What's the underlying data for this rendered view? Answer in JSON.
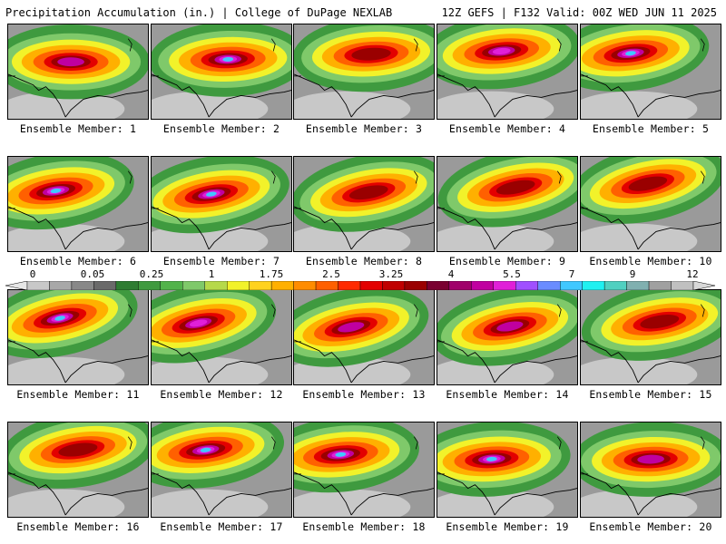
{
  "header": {
    "title_left": "Precipitation Accumulation (in.) | College of DuPage NEXLAB",
    "title_right": "12Z GEFS | F132 Valid: 00Z WED JUN 11 2025"
  },
  "members": [
    {
      "label": "Ensemble Member: 1",
      "max_level": 10
    },
    {
      "label": "Ensemble Member: 2",
      "max_level": 12
    },
    {
      "label": "Ensemble Member: 3",
      "max_level": 9
    },
    {
      "label": "Ensemble Member: 4",
      "max_level": 11
    },
    {
      "label": "Ensemble Member: 5",
      "max_level": 12
    },
    {
      "label": "Ensemble Member: 6",
      "max_level": 13
    },
    {
      "label": "Ensemble Member: 7",
      "max_level": 13
    },
    {
      "label": "Ensemble Member: 8",
      "max_level": 9
    },
    {
      "label": "Ensemble Member: 9",
      "max_level": 9
    },
    {
      "label": "Ensemble Member: 10",
      "max_level": 9
    },
    {
      "label": "Ensemble Member: 11",
      "max_level": 13
    },
    {
      "label": "Ensemble Member: 12",
      "max_level": 11
    },
    {
      "label": "Ensemble Member: 13",
      "max_level": 10
    },
    {
      "label": "Ensemble Member: 14",
      "max_level": 10
    },
    {
      "label": "Ensemble Member: 15",
      "max_level": 9
    },
    {
      "label": "Ensemble Member: 16",
      "max_level": 9
    },
    {
      "label": "Ensemble Member: 17",
      "max_level": 13
    },
    {
      "label": "Ensemble Member: 18",
      "max_level": 12
    },
    {
      "label": "Ensemble Member: 19",
      "max_level": 13
    },
    {
      "label": "Ensemble Member: 20",
      "max_level": 10
    }
  ],
  "colorbar": {
    "ticks": [
      "0",
      "0.05",
      "0.25",
      "1",
      "1.75",
      "2.5",
      "3.25",
      "4",
      "5.5",
      "7",
      "9",
      "12"
    ],
    "colors": [
      "#e6e6e6",
      "#c8c8c8",
      "#a8a8a8",
      "#888888",
      "#6a6a6a",
      "#2e7d32",
      "#3f9a3f",
      "#52b34a",
      "#7fc96a",
      "#b6d94a",
      "#f2f22a",
      "#ffd21e",
      "#ffb000",
      "#ff8c00",
      "#ff6000",
      "#ff2a00",
      "#e30000",
      "#c00000",
      "#9a0000",
      "#7a0030",
      "#a0006a",
      "#c000a0",
      "#e020d8",
      "#a050ff",
      "#6a8cff",
      "#40c8ff",
      "#20f0f0",
      "#50d0c0",
      "#80b0b0",
      "#a0a0a0",
      "#c0c0c0",
      "#d8d8d8"
    ]
  },
  "colors": {
    "background": "#ffffff",
    "map_dry": "#8a8a8a",
    "outline": "#000000"
  }
}
